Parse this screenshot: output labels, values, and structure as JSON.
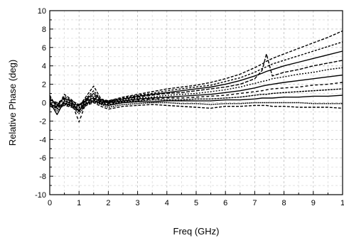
{
  "chart_data": {
    "type": "line",
    "title": "",
    "xlabel": "Freq (GHz)",
    "ylabel": "Relative Phase (deg)",
    "xlim": [
      0,
      10
    ],
    "ylim": [
      -10,
      10
    ],
    "x_ticks": [
      "0",
      "1",
      "2",
      "3",
      "4",
      "5",
      "6",
      "7",
      "8",
      "9",
      "1"
    ],
    "y_ticks": [
      "10",
      "8",
      "6",
      "4",
      "2",
      "0",
      "-2",
      "-4",
      "-6",
      "-8",
      "-10"
    ],
    "grid": true,
    "grid_style": "dashed",
    "line_color": "#000000",
    "legend": "none",
    "x": [
      0.0,
      0.25,
      0.5,
      0.75,
      1.0,
      1.25,
      1.5,
      1.75,
      2.0,
      2.5,
      3.0,
      3.5,
      4.0,
      4.5,
      5.0,
      5.5,
      6.0,
      6.5,
      7.0,
      7.25,
      7.4,
      7.6,
      8.0,
      8.5,
      9.0,
      9.5,
      10.0
    ],
    "series": [
      {
        "values": [
          0.8,
          -0.6,
          0.9,
          0.3,
          -0.4,
          0.7,
          1.8,
          0.4,
          0.2,
          0.6,
          0.9,
          1.2,
          1.5,
          1.7,
          1.9,
          2.2,
          2.6,
          3.1,
          3.8,
          4.2,
          4.5,
          4.8,
          5.3,
          5.9,
          6.5,
          7.1,
          7.8
        ]
      },
      {
        "values": [
          0.6,
          -0.4,
          0.7,
          0.2,
          -0.3,
          0.5,
          1.3,
          0.3,
          0.2,
          0.5,
          0.8,
          1.0,
          1.3,
          1.5,
          1.7,
          1.9,
          2.3,
          2.7,
          3.3,
          3.7,
          3.9,
          4.2,
          4.6,
          5.1,
          5.6,
          6.1,
          6.6
        ]
      },
      {
        "values": [
          0.4,
          -0.2,
          0.5,
          0.1,
          -1.0,
          0.4,
          1.0,
          0.3,
          0.1,
          0.4,
          0.7,
          0.9,
          1.1,
          1.3,
          1.5,
          1.7,
          2.0,
          2.4,
          2.9,
          3.2,
          3.4,
          3.6,
          4.0,
          4.4,
          4.8,
          5.2,
          5.6
        ]
      },
      {
        "values": [
          0.3,
          0.0,
          0.4,
          0.2,
          -0.2,
          0.3,
          0.8,
          0.2,
          0.1,
          0.4,
          0.6,
          0.8,
          1.0,
          1.1,
          1.3,
          1.5,
          1.7,
          2.0,
          2.6,
          3.5,
          5.3,
          2.9,
          3.3,
          3.6,
          4.0,
          4.3,
          4.6
        ]
      },
      {
        "values": [
          0.2,
          -0.3,
          0.3,
          0.0,
          -0.5,
          0.2,
          0.6,
          0.2,
          0.0,
          0.3,
          0.5,
          0.6,
          0.8,
          0.9,
          1.0,
          1.2,
          1.4,
          1.7,
          2.1,
          2.3,
          2.4,
          2.6,
          2.8,
          3.1,
          3.3,
          3.6,
          3.8
        ]
      },
      {
        "values": [
          0.1,
          -1.3,
          0.2,
          -0.1,
          -0.3,
          0.2,
          0.5,
          0.1,
          0.0,
          0.2,
          0.4,
          0.5,
          0.6,
          0.7,
          0.8,
          0.9,
          1.1,
          1.3,
          1.6,
          1.8,
          1.9,
          2.0,
          2.2,
          2.4,
          2.6,
          2.8,
          3.0
        ]
      },
      {
        "values": [
          0.0,
          -0.5,
          0.1,
          0.0,
          -2.1,
          0.1,
          0.4,
          0.1,
          -0.1,
          0.2,
          0.3,
          0.4,
          0.5,
          0.5,
          0.6,
          0.7,
          0.8,
          1.0,
          1.2,
          1.3,
          1.4,
          1.5,
          1.6,
          1.7,
          1.9,
          2.0,
          2.2
        ]
      },
      {
        "values": [
          -0.1,
          -0.7,
          0.0,
          -0.2,
          -0.6,
          0.0,
          0.3,
          0.0,
          -0.2,
          0.1,
          0.2,
          0.3,
          0.3,
          0.3,
          0.4,
          0.4,
          0.5,
          0.6,
          0.8,
          0.9,
          0.9,
          1.0,
          1.1,
          1.2,
          1.3,
          1.4,
          1.5
        ]
      },
      {
        "values": [
          -0.2,
          -0.4,
          -0.1,
          -0.3,
          -0.8,
          -0.1,
          0.2,
          -0.1,
          -0.3,
          0.0,
          0.1,
          0.1,
          0.2,
          0.2,
          0.2,
          0.2,
          0.3,
          0.3,
          0.4,
          0.5,
          0.5,
          0.5,
          0.6,
          0.6,
          0.7,
          0.7,
          0.8
        ]
      },
      {
        "values": [
          -0.3,
          -0.9,
          -0.2,
          -0.4,
          -1.2,
          -0.2,
          0.1,
          -0.2,
          -0.5,
          -0.2,
          -0.1,
          0.0,
          0.0,
          -0.1,
          -0.1,
          -0.2,
          -0.1,
          -0.1,
          0.0,
          0.0,
          0.0,
          0.0,
          0.0,
          0.0,
          -0.1,
          -0.1,
          -0.1
        ]
      },
      {
        "values": [
          -0.4,
          -0.5,
          -0.3,
          -0.5,
          -0.9,
          -0.3,
          0.0,
          -0.4,
          -0.7,
          -0.4,
          -0.3,
          -0.2,
          -0.3,
          -0.4,
          -0.5,
          -0.6,
          -0.4,
          -0.4,
          -0.3,
          -0.3,
          -0.3,
          -0.4,
          -0.4,
          -0.5,
          -0.5,
          -0.5,
          -0.6
        ]
      }
    ]
  }
}
